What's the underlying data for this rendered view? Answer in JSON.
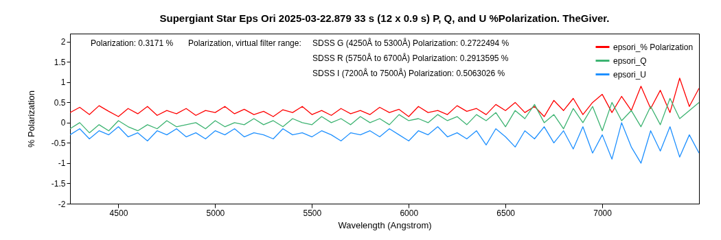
{
  "chart_data": {
    "type": "line",
    "title": "Supergiant Star Eps Ori  2025-03-22.879  33 s (12 x 0.9 s)  P, Q, and U %Polarization. TheGiver.",
    "xlabel": "Wavelength (Angstrom)",
    "ylabel": "% Polarization",
    "x": [
      4250,
      4300,
      4350,
      4400,
      4450,
      4500,
      4550,
      4600,
      4650,
      4700,
      4750,
      4800,
      4850,
      4900,
      4950,
      5000,
      5050,
      5100,
      5150,
      5200,
      5250,
      5300,
      5350,
      5400,
      5450,
      5500,
      5550,
      5600,
      5650,
      5700,
      5750,
      5800,
      5850,
      5900,
      5950,
      6000,
      6050,
      6100,
      6150,
      6200,
      6250,
      6300,
      6350,
      6400,
      6450,
      6500,
      6550,
      6600,
      6650,
      6700,
      6750,
      6800,
      6850,
      6900,
      6950,
      7000,
      7050,
      7100,
      7150,
      7200,
      7250,
      7300,
      7350,
      7400,
      7450,
      7500
    ],
    "series": [
      {
        "name": "epsori_% Polarization",
        "color": "#ff0000",
        "values": [
          0.25,
          0.38,
          0.2,
          0.42,
          0.28,
          0.15,
          0.35,
          0.22,
          0.4,
          0.18,
          0.3,
          0.22,
          0.35,
          0.18,
          0.3,
          0.25,
          0.4,
          0.22,
          0.33,
          0.2,
          0.28,
          0.15,
          0.32,
          0.25,
          0.4,
          0.2,
          0.3,
          0.18,
          0.35,
          0.22,
          0.3,
          0.2,
          0.38,
          0.25,
          0.33,
          0.15,
          0.4,
          0.25,
          0.3,
          0.2,
          0.42,
          0.28,
          0.35,
          0.2,
          0.45,
          0.3,
          0.5,
          0.25,
          0.4,
          0.15,
          0.55,
          0.3,
          0.6,
          0.2,
          0.5,
          0.7,
          0.25,
          0.65,
          0.3,
          0.9,
          0.35,
          0.8,
          0.25,
          1.1,
          0.4,
          0.85
        ]
      },
      {
        "name": "epsori_Q",
        "color": "#3cb371",
        "values": [
          -0.15,
          0.0,
          -0.25,
          -0.05,
          -0.2,
          0.05,
          -0.1,
          -0.2,
          -0.05,
          -0.15,
          0.05,
          -0.1,
          -0.05,
          0.0,
          -0.15,
          0.05,
          -0.1,
          0.0,
          -0.05,
          0.1,
          -0.05,
          0.05,
          -0.1,
          0.1,
          0.0,
          -0.05,
          0.15,
          0.0,
          0.1,
          -0.05,
          0.15,
          0.0,
          0.1,
          -0.05,
          0.2,
          0.05,
          0.1,
          0.0,
          0.2,
          0.05,
          0.15,
          -0.05,
          0.2,
          0.05,
          0.25,
          -0.1,
          0.3,
          0.1,
          0.45,
          0.0,
          0.2,
          -0.15,
          0.35,
          0.0,
          0.4,
          -0.2,
          0.5,
          0.05,
          0.3,
          -0.1,
          0.4,
          -0.05,
          0.6,
          0.1,
          0.3,
          0.5
        ]
      },
      {
        "name": "epsori_U",
        "color": "#1e90ff",
        "values": [
          -0.3,
          -0.15,
          -0.4,
          -0.2,
          -0.3,
          -0.1,
          -0.35,
          -0.25,
          -0.45,
          -0.2,
          -0.3,
          -0.15,
          -0.35,
          -0.25,
          -0.4,
          -0.2,
          -0.3,
          -0.15,
          -0.35,
          -0.25,
          -0.3,
          -0.4,
          -0.15,
          -0.3,
          -0.25,
          -0.35,
          -0.2,
          -0.3,
          -0.45,
          -0.25,
          -0.3,
          -0.2,
          -0.35,
          -0.15,
          -0.3,
          -0.45,
          -0.2,
          -0.3,
          -0.1,
          -0.35,
          -0.25,
          -0.4,
          -0.2,
          -0.55,
          -0.15,
          -0.35,
          -0.6,
          -0.2,
          -0.4,
          -0.1,
          -0.5,
          -0.2,
          -0.65,
          -0.1,
          -0.75,
          -0.3,
          -0.9,
          0.0,
          -0.6,
          -1.0,
          -0.2,
          -0.7,
          -0.1,
          -0.85,
          -0.3,
          -0.75
        ]
      }
    ],
    "xlim": [
      4250,
      7500
    ],
    "xticks": [
      4500,
      5000,
      5500,
      6000,
      6500,
      7000
    ],
    "ylim": [
      -2,
      2.2
    ],
    "yticks": [
      -2,
      -1.5,
      -1,
      -0.5,
      0,
      0.5,
      1,
      1.5,
      2
    ],
    "annotations": [
      "Polarization: 0.3171 %",
      "Polarization, virtual filter range:",
      "SDSS G (4250Å to 5300Å) Polarization: 0.2722494 %",
      "SDSS R (5750Å to 6700Å) Polarization: 0.2913595 %",
      "SDSS  I (7200Å to 7500Å) Polarization: 0.5063026 %"
    ],
    "legend": "top right",
    "grid": false,
    "marker": "none",
    "line_style": "solid"
  }
}
